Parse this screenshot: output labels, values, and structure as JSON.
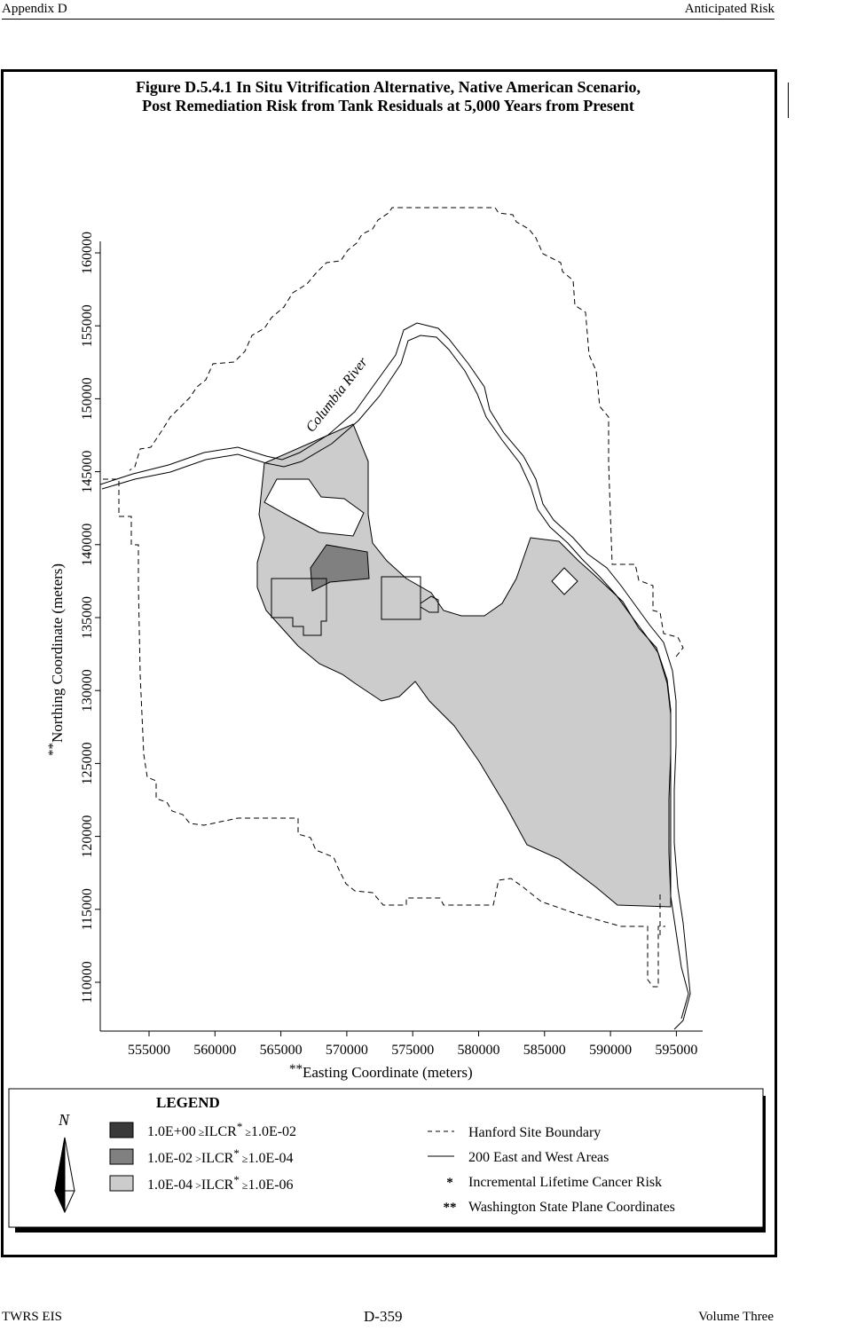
{
  "header": {
    "left": "Appendix D",
    "right": "Anticipated Risk"
  },
  "figure": {
    "title_line1": "Figure D.5.4.1  In Situ Vitrification Alternative, Native American Scenario,",
    "title_line2": "Post Remediation Risk from Tank Residuals at 5,000 Years from Present"
  },
  "map": {
    "river_label": "Columbia River",
    "x_axis": {
      "label_prefix": "**",
      "label": "Easting Coordinate (meters)",
      "ticks": [
        "555000",
        "560000",
        "565000",
        "570000",
        "575000",
        "580000",
        "585000",
        "590000",
        "595000"
      ]
    },
    "y_axis": {
      "label_prefix": "**",
      "label": "Northing Coordinate (meters)",
      "ticks": [
        "110000",
        "115000",
        "120000",
        "125000",
        "130000",
        "135000",
        "140000",
        "145000",
        "150000",
        "155000",
        "160000"
      ]
    },
    "colors": {
      "high_risk": "#3a3a3a",
      "mid_risk": "#808080",
      "low_risk": "#cccccc",
      "line": "#000000"
    }
  },
  "legend": {
    "title": "LEGEND",
    "north_symbol": "N",
    "risk_classes": [
      {
        "upper": "1.0E+00",
        "op1": "≥",
        "metric": "ILCR",
        "mark": "*",
        "op2": "≥",
        "lower": "1.0E-02"
      },
      {
        "upper": "1.0E-02",
        "op1": ">",
        "metric": "ILCR",
        "mark": "*",
        "op2": "≥",
        "lower": "1.0E-04"
      },
      {
        "upper": "1.0E-04",
        "op1": ">",
        "metric": "ILCR",
        "mark": "*",
        "op2": "≥",
        "lower": "1.0E-06"
      }
    ],
    "lines": [
      {
        "symbol": "dashed",
        "label": "Hanford Site Boundary"
      },
      {
        "symbol": "solid",
        "label": "200 East and West Areas"
      },
      {
        "symbol": "*",
        "label": "Incremental Lifetime Cancer Risk"
      },
      {
        "symbol": "**",
        "label": "Washington State Plane Coordinates"
      }
    ]
  },
  "footer": {
    "left": "TWRS EIS",
    "center": "D-359",
    "right": "Volume Three"
  }
}
